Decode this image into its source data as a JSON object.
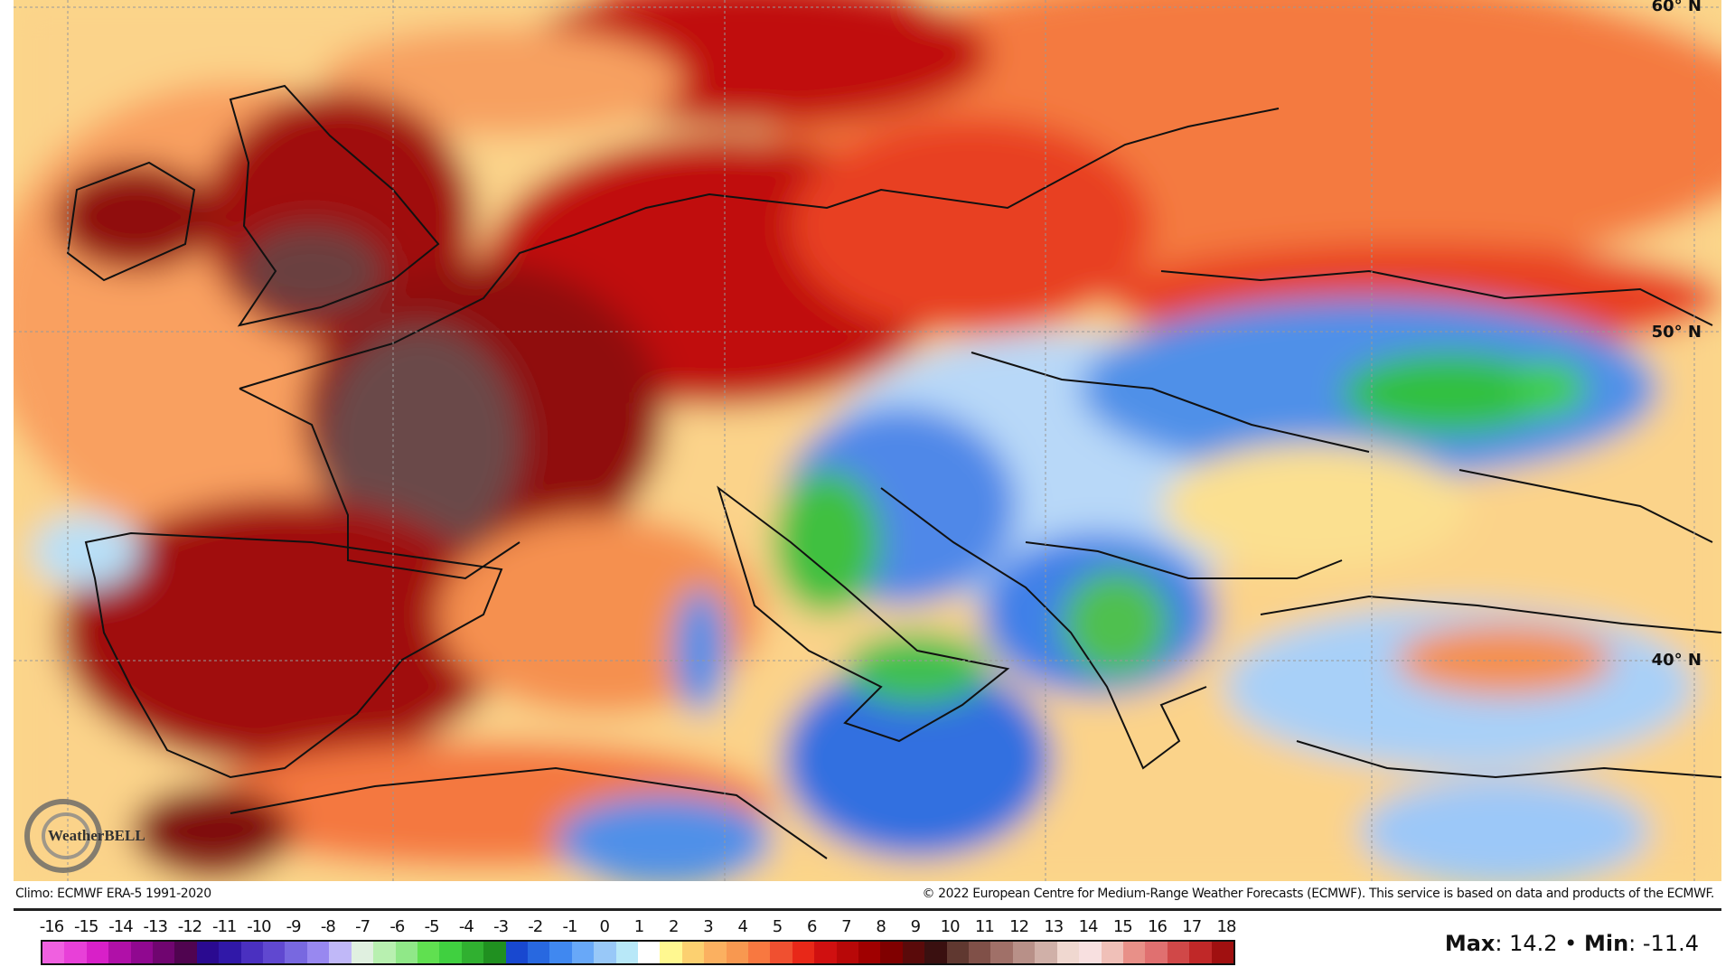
{
  "map": {
    "lat_labels": [
      "60° N",
      "50° N",
      "40° N"
    ],
    "logo_text": "WeatherBELL",
    "field": "temperature anomaly"
  },
  "footer": {
    "climo": "Climo: ECMWF ERA-5 1991-2020",
    "copyright": "© 2022 European Centre for Medium-Range Weather Forecasts (ECMWF). This service is based on data and products of the ECMWF."
  },
  "legend": {
    "ticks": [
      "-16",
      "-15",
      "-14",
      "-13",
      "-12",
      "-11",
      "-10",
      "-9",
      "-8",
      "-7",
      "-6",
      "-5",
      "-4",
      "-3",
      "-2",
      "-1",
      "0",
      "1",
      "2",
      "3",
      "4",
      "5",
      "6",
      "7",
      "8",
      "9",
      "10",
      "11",
      "12",
      "13",
      "14",
      "15",
      "16",
      "17",
      "18"
    ],
    "colors": [
      "#f060e0",
      "#e840d8",
      "#d820c8",
      "#b010a8",
      "#900890",
      "#700570",
      "#500450",
      "#2a0a90",
      "#3018a8",
      "#4a30c0",
      "#6048d0",
      "#7868e0",
      "#9888f0",
      "#c0b8f8",
      "#e0f0e0",
      "#b8f0b0",
      "#90e888",
      "#60e050",
      "#40d040",
      "#30b030",
      "#209020",
      "#1848d0",
      "#2868e0",
      "#4088f0",
      "#68a8f8",
      "#98c8f8",
      "#b8e8f8",
      "#ffffff",
      "#fff890",
      "#fcd070",
      "#fbb060",
      "#f89850",
      "#f87840",
      "#f05030",
      "#e82818",
      "#d01010",
      "#b80808",
      "#a00000",
      "#800000",
      "#5a0a0a",
      "#3a1010",
      "#603830",
      "#805048",
      "#a07068",
      "#b89088",
      "#d0b0a8",
      "#f0d8d0",
      "#f8e0e0",
      "#f0c0b8",
      "#e89088",
      "#e07070",
      "#d04848",
      "#c02828",
      "#a01010"
    ],
    "max_label": "Max",
    "max_value": "14.2",
    "min_label": "Min",
    "min_value": "-11.4",
    "separator": "•"
  }
}
